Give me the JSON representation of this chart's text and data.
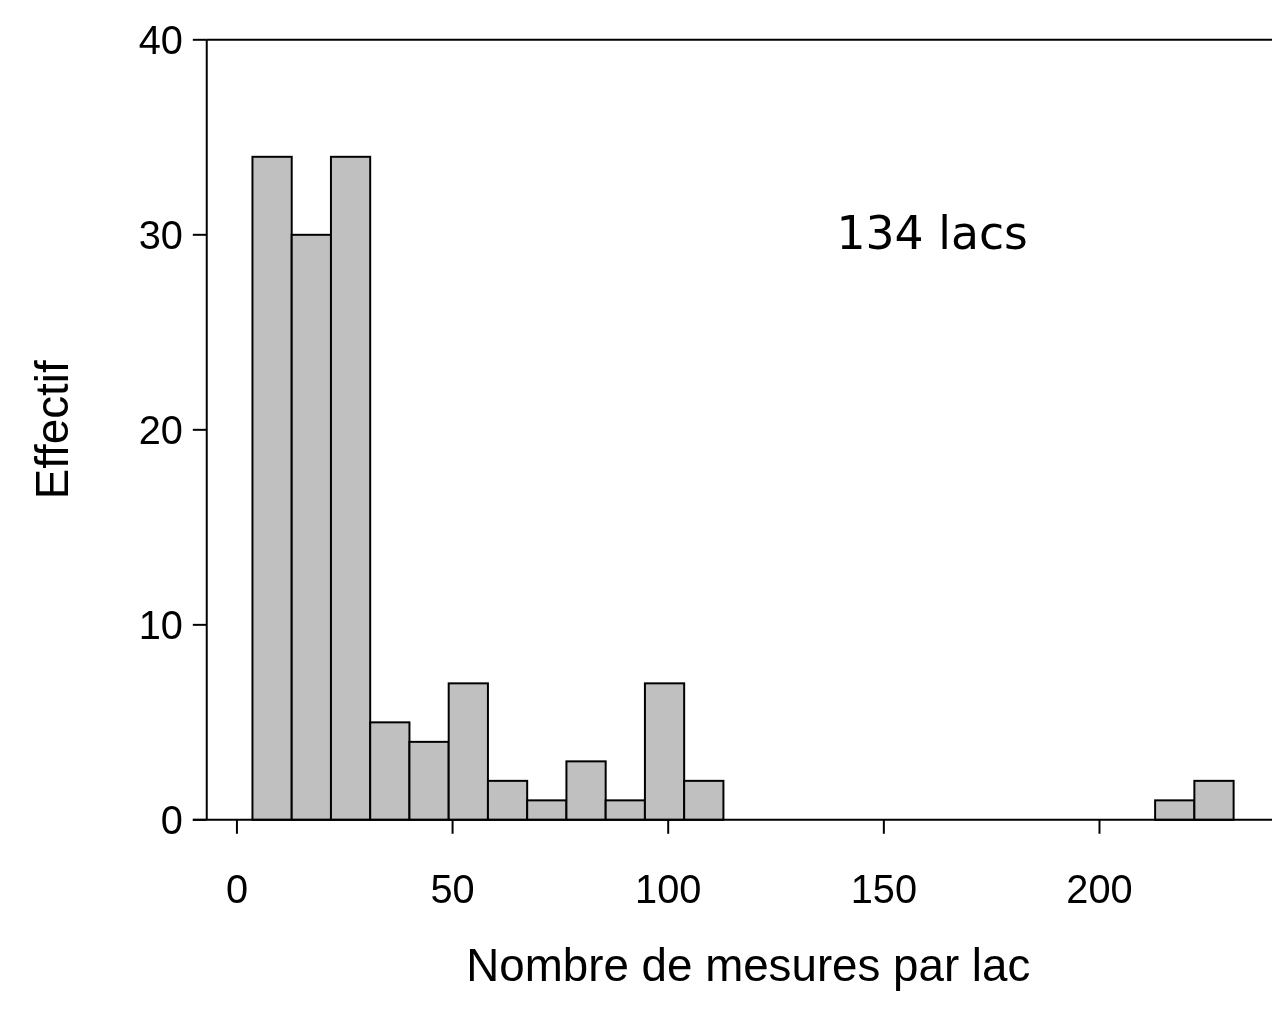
{
  "chart_data": {
    "type": "histogram",
    "xlabel": "Nombre de mesures par lac",
    "ylabel": "Effectif",
    "bins": [
      3.6,
      12.7,
      21.8,
      30.9,
      40,
      49.1,
      58.2,
      67.3,
      76.4,
      85.5,
      94.6,
      103.7,
      112.8,
      121.9,
      131,
      140.1,
      149.2,
      158.3,
      167.4,
      176.5,
      185.6,
      194.7,
      203.8,
      212.9,
      222,
      231.1
    ],
    "values": [
      34,
      30,
      34,
      5,
      4,
      7,
      2,
      1,
      3,
      1,
      7,
      2,
      0,
      0,
      0,
      0,
      0,
      0,
      0,
      0,
      0,
      0,
      0,
      1,
      2
    ],
    "color": "#c0c0c0",
    "xlim": [
      -7,
      240
    ],
    "ylim": [
      0,
      40
    ],
    "xticks": [
      0,
      50,
      100,
      150,
      200
    ],
    "yticks": [
      0,
      10,
      20,
      30,
      40
    ],
    "grid": false,
    "annotations": [
      "134 lacs"
    ]
  }
}
